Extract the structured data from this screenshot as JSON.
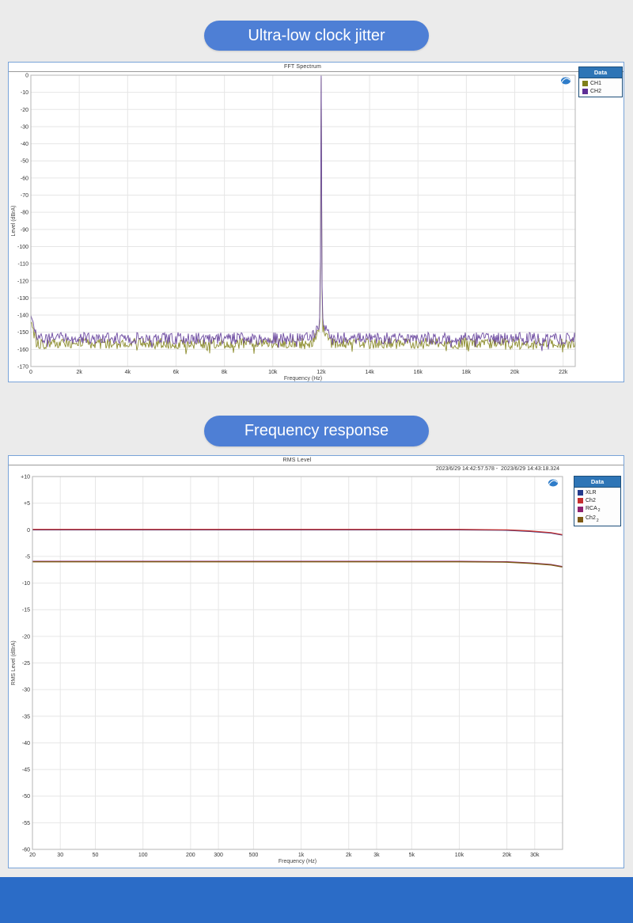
{
  "page": {
    "background": "#ebebeb",
    "pill_color": "#4e7fd5",
    "footer_color": "#2b6cc7"
  },
  "sections": [
    {
      "heading": "Ultra-low clock jitter"
    },
    {
      "heading": "Frequency response"
    }
  ],
  "chart_data": [
    {
      "type": "line",
      "title": "FFT Spectrum",
      "xlabel": "Frequency (Hz)",
      "ylabel": "Level (dBrA)",
      "x_scale": "linear",
      "xlim": [
        0,
        22500
      ],
      "ylim": [
        -170,
        0
      ],
      "y_tick_step": 10,
      "grid": true,
      "x_ticks": [
        {
          "v": 0,
          "label": "0"
        },
        {
          "v": 2000,
          "label": "2k"
        },
        {
          "v": 4000,
          "label": "4k"
        },
        {
          "v": 6000,
          "label": "6k"
        },
        {
          "v": 8000,
          "label": "8k"
        },
        {
          "v": 10000,
          "label": "10k"
        },
        {
          "v": 12000,
          "label": "12k"
        },
        {
          "v": 14000,
          "label": "14k"
        },
        {
          "v": 16000,
          "label": "16k"
        },
        {
          "v": 18000,
          "label": "18k"
        },
        {
          "v": 20000,
          "label": "20k"
        },
        {
          "v": 22000,
          "label": "22k"
        }
      ],
      "legend": {
        "header": "Data",
        "position": "outside-top-right",
        "entries": [
          {
            "label": "CH1",
            "sub": "",
            "color": "#7f7f1a"
          },
          {
            "label": "CH2",
            "sub": "",
            "color": "#5e2f96"
          }
        ]
      },
      "series_model": [
        {
          "name": "CH1",
          "color": "#8d8d2e",
          "noise_floor_db": -156.5,
          "noise_jitter_db": 3.2,
          "lf_rise_db": 14,
          "tone_hz": 12000,
          "tone_peak_db": -1.5,
          "seed": 101
        },
        {
          "name": "CH2",
          "color": "#6f4da2",
          "noise_floor_db": -153.5,
          "noise_jitter_db": 3.4,
          "lf_rise_db": 16,
          "tone_hz": 12000,
          "tone_peak_db": -0.3,
          "seed": 202
        }
      ],
      "annotations": {
        "logo": "AP"
      }
    },
    {
      "type": "line",
      "title": "RMS Level",
      "time_range": "2023/6/29 14:42:57.578 -  2023/6/29 14:43:18.324",
      "xlabel": "Frequency (Hz)",
      "ylabel": "RMS Level (dBrA)",
      "x_scale": "log",
      "xlim": [
        20,
        45000
      ],
      "ylim": [
        -60,
        10
      ],
      "y_tick_step": 5,
      "grid": true,
      "x_ticks": [
        {
          "v": 20,
          "label": "20"
        },
        {
          "v": 30,
          "label": "30"
        },
        {
          "v": 50,
          "label": "50"
        },
        {
          "v": 100,
          "label": "100"
        },
        {
          "v": 200,
          "label": "200"
        },
        {
          "v": 300,
          "label": "300"
        },
        {
          "v": 500,
          "label": "500"
        },
        {
          "v": 1000,
          "label": "1k"
        },
        {
          "v": 2000,
          "label": "2k"
        },
        {
          "v": 3000,
          "label": "3k"
        },
        {
          "v": 5000,
          "label": "5k"
        },
        {
          "v": 10000,
          "label": "10k"
        },
        {
          "v": 20000,
          "label": "20k"
        },
        {
          "v": 30000,
          "label": "30k"
        }
      ],
      "legend": {
        "header": "Data",
        "position": "outside-top-right",
        "entries": [
          {
            "label": "XLR",
            "sub": "",
            "color": "#233a8c"
          },
          {
            "label": "Ch2",
            "sub": "",
            "color": "#c62f2f"
          },
          {
            "label": "RCA",
            "sub": "2",
            "color": "#8e2270"
          },
          {
            "label": "Ch2",
            "sub": "2",
            "color": "#7d5a14"
          }
        ]
      },
      "series": [
        {
          "name": "XLR",
          "color": "#233a8c",
          "points": [
            [
              20,
              0
            ],
            [
              10000,
              0
            ],
            [
              20000,
              -0.08
            ],
            [
              28000,
              -0.3
            ],
            [
              38000,
              -0.6
            ],
            [
              45000,
              -1.0
            ]
          ]
        },
        {
          "name": "Ch2",
          "color": "#c62f2f",
          "points": [
            [
              20,
              0.07
            ],
            [
              10000,
              0.07
            ],
            [
              20000,
              -0.01
            ],
            [
              28000,
              -0.23
            ],
            [
              38000,
              -0.53
            ],
            [
              45000,
              -0.93
            ]
          ]
        },
        {
          "name": "RCA 2",
          "color": "#8e2270",
          "points": [
            [
              20,
              -5.92
            ],
            [
              10000,
              -5.92
            ],
            [
              20000,
              -6.0
            ],
            [
              28000,
              -6.22
            ],
            [
              38000,
              -6.52
            ],
            [
              45000,
              -6.92
            ]
          ]
        },
        {
          "name": "Ch2 2",
          "color": "#7d5a14",
          "points": [
            [
              20,
              -6.0
            ],
            [
              10000,
              -6.0
            ],
            [
              20000,
              -6.08
            ],
            [
              28000,
              -6.3
            ],
            [
              38000,
              -6.6
            ],
            [
              45000,
              -7.0
            ]
          ]
        }
      ],
      "annotations": {
        "logo": "AP"
      }
    }
  ]
}
